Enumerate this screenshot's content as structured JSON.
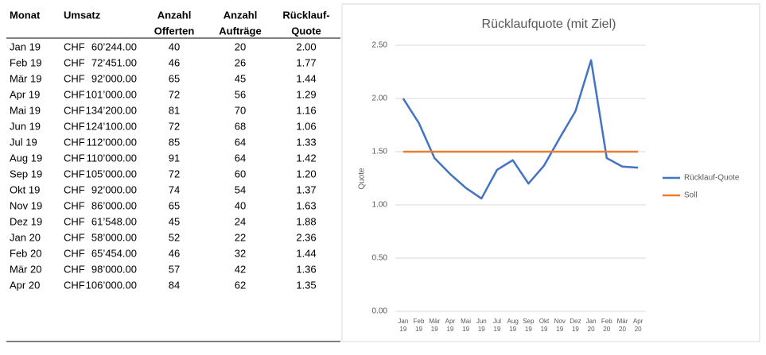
{
  "table": {
    "header": [
      [
        "Monat"
      ],
      [
        "Umsatz"
      ],
      [
        "Anzahl",
        "Offerten"
      ],
      [
        "Anzahl",
        "Aufträge"
      ],
      [
        "Rücklauf-",
        "Quote"
      ]
    ],
    "rows": [
      [
        "Jan 19",
        "CHF",
        "60’244.00",
        40,
        20,
        "2.00"
      ],
      [
        "Feb 19",
        "CHF",
        "72’451.00",
        46,
        26,
        "1.77"
      ],
      [
        "Mär 19",
        "CHF",
        "92’000.00",
        65,
        45,
        "1.44"
      ],
      [
        "Apr 19",
        "CHF",
        "101’000.00",
        72,
        56,
        "1.29"
      ],
      [
        "Mai 19",
        "CHF",
        "134’200.00",
        81,
        70,
        "1.16"
      ],
      [
        "Jun 19",
        "CHF",
        "124’100.00",
        72,
        68,
        "1.06"
      ],
      [
        "Jul 19",
        "CHF",
        "112’000.00",
        85,
        64,
        "1.33"
      ],
      [
        "Aug 19",
        "CHF",
        "110’000.00",
        91,
        64,
        "1.42"
      ],
      [
        "Sep 19",
        "CHF",
        "105’000.00",
        72,
        60,
        "1.20"
      ],
      [
        "Okt 19",
        "CHF",
        "92’000.00",
        74,
        54,
        "1.37"
      ],
      [
        "Nov 19",
        "CHF",
        "86’000.00",
        65,
        40,
        "1.63"
      ],
      [
        "Dez 19",
        "CHF",
        "61’548.00",
        45,
        24,
        "1.88"
      ],
      [
        "Jan 20",
        "CHF",
        "58’000.00",
        52,
        22,
        "2.36"
      ],
      [
        "Feb 20",
        "CHF",
        "65’454.00",
        46,
        32,
        "1.44"
      ],
      [
        "Mär 20",
        "CHF",
        "98’000.00",
        57,
        42,
        "1.36"
      ],
      [
        "Apr 20",
        "CHF",
        "106’000.00",
        84,
        62,
        "1.35"
      ]
    ]
  },
  "chart_data": {
    "type": "line",
    "title": "Rücklaufquote (mit Ziel)",
    "y_label": "Quote",
    "categories": [
      "Jan 19",
      "Feb 19",
      "Mär 19",
      "Apr 19",
      "Mai 19",
      "Jun 19",
      "Jul 19",
      "Aug 19",
      "Sep 19",
      "Okt 19",
      "Nov 19",
      "Dez 19",
      "Jan 20",
      "Feb 20",
      "Mär 20",
      "Apr 20"
    ],
    "series": [
      {
        "name": "Rücklauf-Quote",
        "color": "#4472c4",
        "values": [
          2.0,
          1.77,
          1.44,
          1.29,
          1.16,
          1.06,
          1.33,
          1.42,
          1.2,
          1.37,
          1.63,
          1.88,
          2.36,
          1.44,
          1.36,
          1.35
        ]
      },
      {
        "name": "Soll",
        "color": "#ed7d31",
        "values": [
          1.5,
          1.5,
          1.5,
          1.5,
          1.5,
          1.5,
          1.5,
          1.5,
          1.5,
          1.5,
          1.5,
          1.5,
          1.5,
          1.5,
          1.5,
          1.5
        ]
      }
    ],
    "ylim": [
      0,
      2.5
    ],
    "yticks": [
      {
        "value": 0,
        "label": "0.00"
      },
      {
        "value": 0.5,
        "label": "0.50"
      },
      {
        "value": 1,
        "label": "1.00"
      },
      {
        "value": 1.5,
        "label": "1.50"
      },
      {
        "value": 2,
        "label": "2.00"
      },
      {
        "value": 2.5,
        "label": "2.50"
      }
    ],
    "grid": true,
    "legend": "right"
  }
}
